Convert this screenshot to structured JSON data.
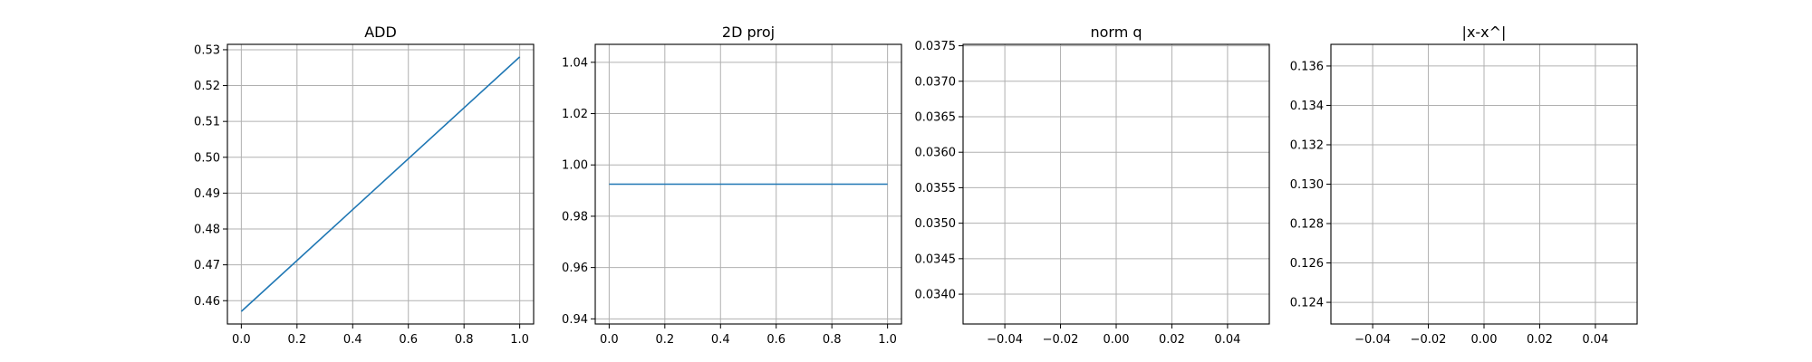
{
  "chart_data": [
    {
      "type": "line",
      "title": "ADD",
      "xlabel": "",
      "ylabel": "",
      "xlim": [
        -0.05,
        1.05
      ],
      "ylim": [
        0.4535,
        0.5315
      ],
      "xticks": [
        0.0,
        0.2,
        0.4,
        0.6,
        0.8,
        1.0
      ],
      "xtick_labels": [
        "0.0",
        "0.2",
        "0.4",
        "0.6",
        "0.8",
        "1.0"
      ],
      "yticks": [
        0.46,
        0.47,
        0.48,
        0.49,
        0.5,
        0.51,
        0.52,
        0.53
      ],
      "ytick_labels": [
        "0.46",
        "0.47",
        "0.48",
        "0.49",
        "0.50",
        "0.51",
        "0.52",
        "0.53"
      ],
      "grid": true,
      "series": [
        {
          "x": [
            0.0,
            1.0
          ],
          "y": [
            0.457,
            0.528
          ],
          "color": "#1f77b4"
        }
      ]
    },
    {
      "type": "line",
      "title": "2D proj",
      "xlabel": "",
      "ylabel": "",
      "xlim": [
        -0.05,
        1.05
      ],
      "ylim": [
        0.938,
        1.047
      ],
      "xticks": [
        0.0,
        0.2,
        0.4,
        0.6,
        0.8,
        1.0
      ],
      "xtick_labels": [
        "0.0",
        "0.2",
        "0.4",
        "0.6",
        "0.8",
        "1.0"
      ],
      "yticks": [
        0.94,
        0.96,
        0.98,
        1.0,
        1.02,
        1.04
      ],
      "ytick_labels": [
        "0.94",
        "0.96",
        "0.98",
        "1.00",
        "1.02",
        "1.04"
      ],
      "grid": true,
      "series": [
        {
          "x": [
            0.0,
            1.0
          ],
          "y": [
            0.9925,
            0.9925
          ],
          "color": "#1f77b4"
        }
      ]
    },
    {
      "type": "line",
      "title": "norm q",
      "xlabel": "",
      "ylabel": "",
      "xlim": [
        -0.055,
        0.055
      ],
      "ylim": [
        0.03358,
        0.03752
      ],
      "xticks": [
        -0.04,
        -0.02,
        0.0,
        0.02,
        0.04
      ],
      "xtick_labels": [
        "−0.04",
        "−0.02",
        "0.00",
        "0.02",
        "0.04"
      ],
      "yticks": [
        0.034,
        0.0345,
        0.035,
        0.0355,
        0.036,
        0.0365,
        0.037,
        0.0375
      ],
      "ytick_labels": [
        "0.0340",
        "0.0345",
        "0.0350",
        "0.0355",
        "0.0360",
        "0.0365",
        "0.0370",
        "0.0375"
      ],
      "grid": true,
      "series": []
    },
    {
      "type": "line",
      "title": "|x-x^|",
      "xlabel": "",
      "ylabel": "",
      "xlim": [
        -0.055,
        0.055
      ],
      "ylim": [
        0.1229,
        0.1371
      ],
      "xticks": [
        -0.04,
        -0.02,
        0.0,
        0.02,
        0.04
      ],
      "xtick_labels": [
        "−0.04",
        "−0.02",
        "0.00",
        "0.02",
        "0.04"
      ],
      "yticks": [
        0.124,
        0.126,
        0.128,
        0.13,
        0.132,
        0.134,
        0.136
      ],
      "ytick_labels": [
        "0.124",
        "0.126",
        "0.128",
        "0.130",
        "0.132",
        "0.134",
        "0.136"
      ],
      "grid": true,
      "series": []
    }
  ]
}
